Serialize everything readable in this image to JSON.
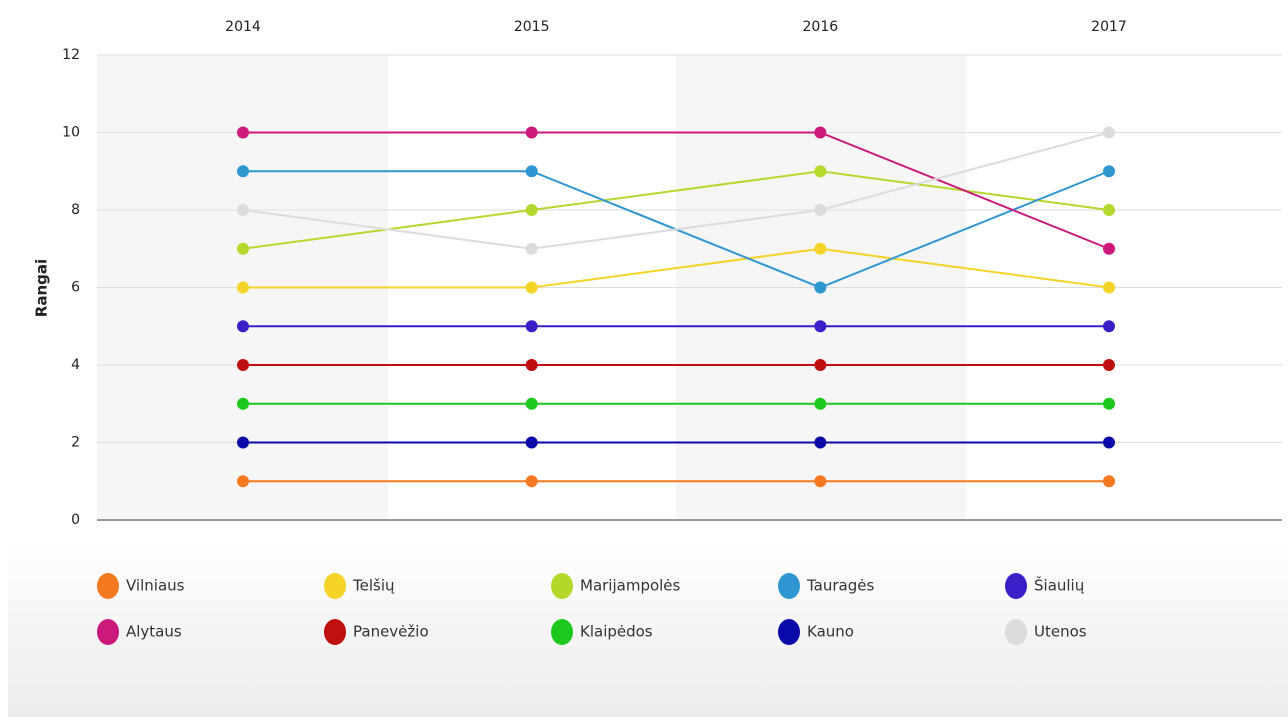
{
  "chart_data": {
    "type": "line",
    "y_label": "Rangai",
    "categories": [
      "2014",
      "2015",
      "2016",
      "2017"
    ],
    "ylim": [
      0,
      12
    ],
    "yticks": [
      0,
      2,
      4,
      6,
      8,
      10,
      12
    ],
    "grid": true,
    "legend": "bottom",
    "series": [
      {
        "name": "Vilniaus",
        "color": "#f47920",
        "values": [
          1,
          1,
          1,
          1
        ]
      },
      {
        "name": "Telšių",
        "color": "#f5d327",
        "values": [
          6,
          6,
          7,
          6
        ]
      },
      {
        "name": "Marijampolės",
        "color": "#b5d82c",
        "values": [
          7,
          8,
          9,
          8
        ]
      },
      {
        "name": "Tauragės",
        "color": "#2e96d0",
        "values": [
          9,
          9,
          6,
          9
        ]
      },
      {
        "name": "Šiaulių",
        "color": "#3a1fc9",
        "values": [
          5,
          5,
          5,
          5
        ]
      },
      {
        "name": "Alytaus",
        "color": "#cc1a7c",
        "values": [
          10,
          10,
          10,
          7
        ]
      },
      {
        "name": "Panevėžio",
        "color": "#c00f0f",
        "values": [
          4,
          4,
          4,
          4
        ]
      },
      {
        "name": "Klaipėdos",
        "color": "#1ec91e",
        "values": [
          3,
          3,
          3,
          3
        ]
      },
      {
        "name": "Kauno",
        "color": "#0a0aa8",
        "values": [
          2,
          2,
          2,
          2
        ]
      },
      {
        "name": "Utenos",
        "color": "#dcdcdc",
        "values": [
          8,
          7,
          8,
          10
        ]
      }
    ]
  }
}
